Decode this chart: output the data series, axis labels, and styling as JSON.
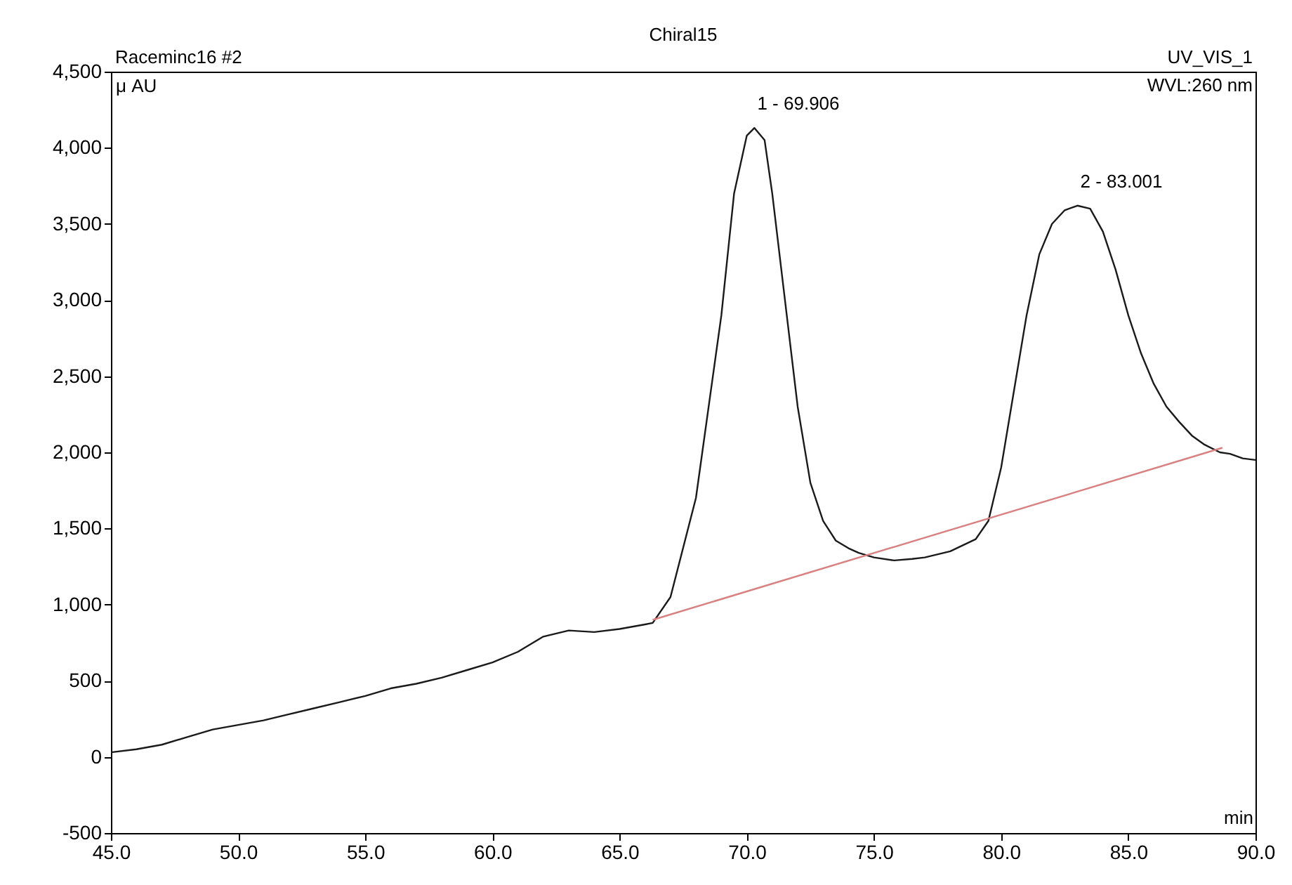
{
  "chart_data": {
    "type": "line",
    "title": "Chiral15",
    "xlabel": "min",
    "ylabel": "μ AU",
    "annotations": [
      "Raceminc16 #2",
      "UV_VIS_1",
      "WVL:260 nm",
      {
        "text": "1 - 69.906",
        "x": 70.3,
        "y": 4130
      },
      {
        "text": "2 - 83.001",
        "x": 83.0,
        "y": 3620
      }
    ],
    "xlim": [
      45,
      90
    ],
    "ylim": [
      -500,
      4500
    ],
    "xticks": [
      {
        "value": 45,
        "label": "45.0"
      },
      {
        "value": 50,
        "label": "50.0"
      },
      {
        "value": 55,
        "label": "55.0"
      },
      {
        "value": 60,
        "label": "60.0"
      },
      {
        "value": 65,
        "label": "65.0"
      },
      {
        "value": 70,
        "label": "70.0"
      },
      {
        "value": 75,
        "label": "75.0"
      },
      {
        "value": 80,
        "label": "80.0"
      },
      {
        "value": 85,
        "label": "85.0"
      },
      {
        "value": 90,
        "label": "90.0"
      }
    ],
    "yticks": [
      -500,
      0,
      500,
      {
        "value": 1000,
        "label": "1,000"
      },
      {
        "value": 1500,
        "label": "1,500"
      },
      {
        "value": 2000,
        "label": "2,000"
      },
      {
        "value": 2500,
        "label": "2,500"
      },
      {
        "value": 3000,
        "label": "3,000"
      },
      {
        "value": 3500,
        "label": "3,500"
      },
      {
        "value": 4000,
        "label": "4,000"
      },
      {
        "value": 4500,
        "label": "4,500"
      }
    ],
    "grid": false,
    "line_style": "solid",
    "series": [
      {
        "color": "#1a1a1a",
        "x": [
          45,
          46,
          47,
          48,
          49,
          50,
          51,
          52,
          53,
          54,
          55,
          56,
          57,
          58,
          59,
          60,
          61,
          62,
          63,
          64,
          65,
          66,
          66.3,
          67,
          68,
          69,
          69.5,
          70,
          70.3,
          70.7,
          71,
          71.5,
          72,
          72.5,
          73,
          73.5,
          74,
          74.4,
          75,
          75.8,
          76.5,
          77,
          78,
          79,
          79.5,
          80,
          80.5,
          81,
          81.5,
          82,
          82.5,
          83,
          83.5,
          84,
          84.5,
          85,
          85.5,
          86,
          86.5,
          87,
          87.5,
          88,
          88.6,
          89,
          89.5,
          90
        ],
        "values": [
          30,
          50,
          80,
          130,
          180,
          210,
          240,
          280,
          320,
          360,
          400,
          450,
          480,
          520,
          570,
          620,
          690,
          790,
          830,
          820,
          840,
          870,
          880,
          1050,
          1700,
          2900,
          3700,
          4080,
          4130,
          4050,
          3700,
          3000,
          2300,
          1800,
          1550,
          1420,
          1370,
          1340,
          1310,
          1290,
          1300,
          1310,
          1350,
          1430,
          1550,
          1900,
          2400,
          2900,
          3300,
          3500,
          3590,
          3620,
          3600,
          3450,
          3200,
          2900,
          2650,
          2450,
          2300,
          2200,
          2110,
          2050,
          2000,
          1990,
          1960,
          1950
        ]
      },
      {
        "type": "line",
        "color": "#d98080",
        "x": [
          66.3,
          88.7
        ],
        "values": [
          900,
          2030
        ]
      }
    ]
  }
}
